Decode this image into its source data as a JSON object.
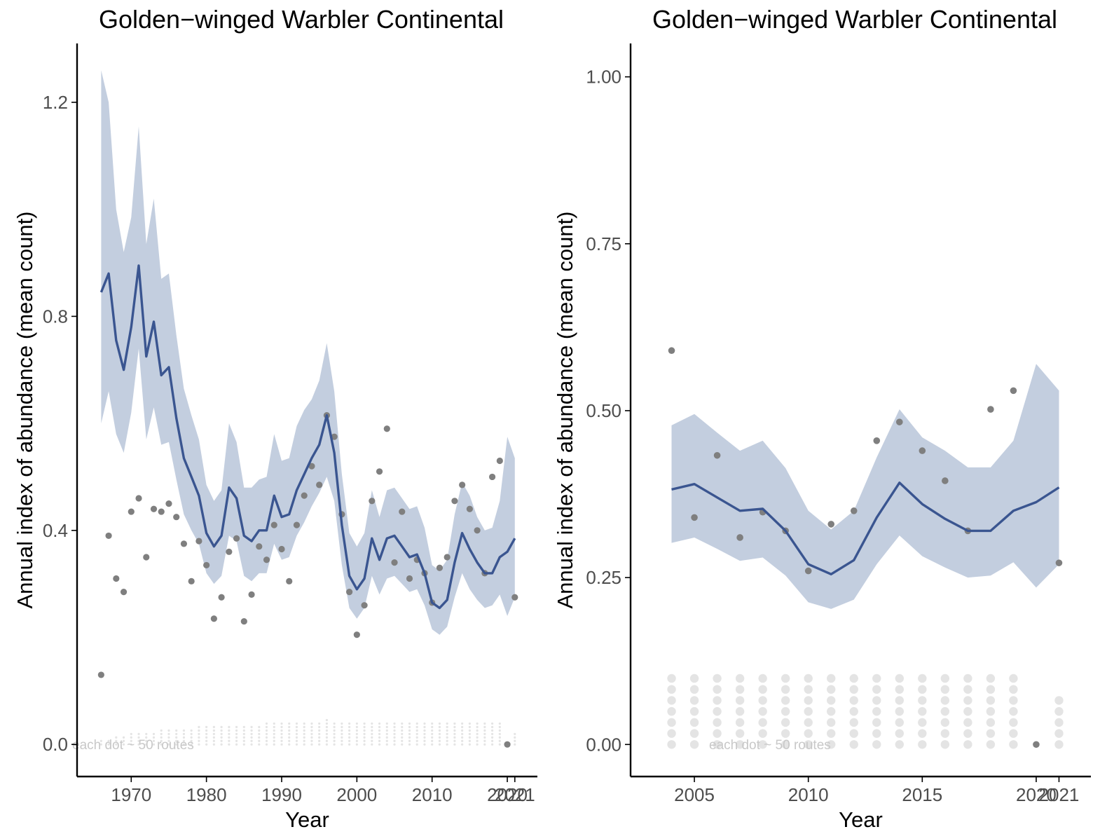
{
  "colors": {
    "line": "#3a5590",
    "ribbon": "#c3cedf",
    "points": "#7f7f7f",
    "route_dots": "#e4e4e4",
    "axis": "#000000",
    "tick_text": "#4d4d4d"
  },
  "chart_data": [
    {
      "type": "line",
      "title": "Golden−winged Warbler Continental",
      "xlabel": "Year",
      "ylabel": "Annual index of abundance (mean count)",
      "note": "each dot ~ 50 routes",
      "xlim": [
        1962.8,
        2024.0
      ],
      "ylim": [
        -0.06,
        1.31
      ],
      "x_ticks": [
        1970,
        1980,
        1990,
        2000,
        2010,
        2020,
        2021
      ],
      "x_tick_labels": [
        "1970",
        "1980",
        "1990",
        "2000",
        "2010",
        "2020",
        "2021"
      ],
      "y_ticks": [
        0.0,
        0.4,
        0.8,
        1.2
      ],
      "y_tick_labels": [
        "0.0",
        "0.4",
        "0.8",
        "1.2"
      ],
      "grid": false,
      "series": [
        {
          "x": [
            1966,
            1967,
            1968,
            1969,
            1970,
            1971,
            1972,
            1973,
            1974,
            1975,
            1976,
            1977,
            1978,
            1979,
            1980,
            1981,
            1982,
            1983,
            1984,
            1985,
            1986,
            1987,
            1988,
            1989,
            1990,
            1991,
            1992,
            1993,
            1994,
            1995,
            1996,
            1997,
            1998,
            1999,
            2000,
            2001,
            2002,
            2003,
            2004,
            2005,
            2006,
            2007,
            2008,
            2009,
            2010,
            2011,
            2012,
            2013,
            2014,
            2015,
            2016,
            2017,
            2018,
            2019,
            2020,
            2021
          ],
          "y": [
            0.845,
            0.88,
            0.755,
            0.7,
            0.78,
            0.895,
            0.725,
            0.79,
            0.69,
            0.705,
            0.61,
            0.535,
            0.5,
            0.465,
            0.395,
            0.37,
            0.39,
            0.48,
            0.46,
            0.39,
            0.38,
            0.4,
            0.4,
            0.465,
            0.425,
            0.43,
            0.475,
            0.505,
            0.535,
            0.56,
            0.615,
            0.545,
            0.41,
            0.315,
            0.29,
            0.31,
            0.385,
            0.345,
            0.385,
            0.39,
            0.37,
            0.35,
            0.355,
            0.32,
            0.265,
            0.255,
            0.27,
            0.34,
            0.395,
            0.365,
            0.34,
            0.32,
            0.32,
            0.35,
            0.36,
            0.385
          ],
          "lower": [
            0.6,
            0.66,
            0.58,
            0.545,
            0.62,
            0.74,
            0.57,
            0.63,
            0.56,
            0.565,
            0.495,
            0.43,
            0.4,
            0.375,
            0.32,
            0.3,
            0.315,
            0.39,
            0.38,
            0.315,
            0.305,
            0.32,
            0.32,
            0.375,
            0.345,
            0.35,
            0.39,
            0.415,
            0.445,
            0.47,
            0.5,
            0.455,
            0.335,
            0.255,
            0.235,
            0.255,
            0.315,
            0.28,
            0.31,
            0.315,
            0.3,
            0.285,
            0.29,
            0.26,
            0.215,
            0.205,
            0.22,
            0.275,
            0.32,
            0.29,
            0.27,
            0.255,
            0.26,
            0.28,
            0.24,
            0.275
          ],
          "upper": [
            1.26,
            1.2,
            1.0,
            0.92,
            0.985,
            1.155,
            0.935,
            1.02,
            0.87,
            0.88,
            0.765,
            0.665,
            0.615,
            0.57,
            0.485,
            0.455,
            0.475,
            0.6,
            0.565,
            0.48,
            0.48,
            0.495,
            0.5,
            0.58,
            0.53,
            0.535,
            0.595,
            0.625,
            0.645,
            0.68,
            0.75,
            0.66,
            0.505,
            0.395,
            0.37,
            0.395,
            0.475,
            0.425,
            0.475,
            0.48,
            0.46,
            0.44,
            0.445,
            0.405,
            0.335,
            0.325,
            0.345,
            0.43,
            0.49,
            0.465,
            0.425,
            0.4,
            0.405,
            0.455,
            0.575,
            0.535
          ]
        }
      ],
      "points": [
        {
          "x": 1966,
          "y": 0.13
        },
        {
          "x": 1967,
          "y": 0.39
        },
        {
          "x": 1968,
          "y": 0.31
        },
        {
          "x": 1969,
          "y": 0.285
        },
        {
          "x": 1970,
          "y": 0.435
        },
        {
          "x": 1971,
          "y": 0.46
        },
        {
          "x": 1972,
          "y": 0.35
        },
        {
          "x": 1973,
          "y": 0.44
        },
        {
          "x": 1974,
          "y": 0.435
        },
        {
          "x": 1975,
          "y": 0.45
        },
        {
          "x": 1976,
          "y": 0.425
        },
        {
          "x": 1977,
          "y": 0.375
        },
        {
          "x": 1978,
          "y": 0.305
        },
        {
          "x": 1979,
          "y": 0.38
        },
        {
          "x": 1980,
          "y": 0.335
        },
        {
          "x": 1981,
          "y": 0.235
        },
        {
          "x": 1982,
          "y": 0.275
        },
        {
          "x": 1983,
          "y": 0.36
        },
        {
          "x": 1984,
          "y": 0.385
        },
        {
          "x": 1985,
          "y": 0.23
        },
        {
          "x": 1986,
          "y": 0.28
        },
        {
          "x": 1987,
          "y": 0.37
        },
        {
          "x": 1988,
          "y": 0.345
        },
        {
          "x": 1989,
          "y": 0.41
        },
        {
          "x": 1990,
          "y": 0.365
        },
        {
          "x": 1991,
          "y": 0.305
        },
        {
          "x": 1992,
          "y": 0.41
        },
        {
          "x": 1993,
          "y": 0.465
        },
        {
          "x": 1994,
          "y": 0.52
        },
        {
          "x": 1995,
          "y": 0.485
        },
        {
          "x": 1996,
          "y": 0.615
        },
        {
          "x": 1997,
          "y": 0.575
        },
        {
          "x": 1998,
          "y": 0.43
        },
        {
          "x": 1999,
          "y": 0.285
        },
        {
          "x": 2000,
          "y": 0.205
        },
        {
          "x": 2001,
          "y": 0.26
        },
        {
          "x": 2002,
          "y": 0.455
        },
        {
          "x": 2003,
          "y": 0.51
        },
        {
          "x": 2004,
          "y": 0.59
        },
        {
          "x": 2005,
          "y": 0.34
        },
        {
          "x": 2006,
          "y": 0.435
        },
        {
          "x": 2007,
          "y": 0.31
        },
        {
          "x": 2008,
          "y": 0.345
        },
        {
          "x": 2009,
          "y": 0.32
        },
        {
          "x": 2010,
          "y": 0.265
        },
        {
          "x": 2011,
          "y": 0.33
        },
        {
          "x": 2012,
          "y": 0.35
        },
        {
          "x": 2013,
          "y": 0.455
        },
        {
          "x": 2014,
          "y": 0.485
        },
        {
          "x": 2015,
          "y": 0.44
        },
        {
          "x": 2016,
          "y": 0.4
        },
        {
          "x": 2017,
          "y": 0.32
        },
        {
          "x": 2018,
          "y": 0.5
        },
        {
          "x": 2019,
          "y": 0.53
        },
        {
          "x": 2020,
          "y": 0.0
        },
        {
          "x": 2021,
          "y": 0.275
        }
      ],
      "route_dots": {
        "years": [
          1966,
          1967,
          1968,
          1969,
          1970,
          1971,
          1972,
          1973,
          1974,
          1975,
          1976,
          1977,
          1978,
          1979,
          1980,
          1981,
          1982,
          1983,
          1984,
          1985,
          1986,
          1987,
          1988,
          1989,
          1990,
          1991,
          1992,
          1993,
          1994,
          1995,
          1996,
          1997,
          1998,
          1999,
          2000,
          2001,
          2002,
          2003,
          2004,
          2005,
          2006,
          2007,
          2008,
          2009,
          2010,
          2011,
          2012,
          2013,
          2014,
          2015,
          2016,
          2017,
          2018,
          2019,
          2020,
          2021
        ],
        "counts": [
          2,
          2,
          3,
          3,
          4,
          4,
          4,
          4,
          5,
          5,
          5,
          5,
          5,
          6,
          6,
          6,
          6,
          6,
          6,
          6,
          6,
          6,
          7,
          7,
          7,
          7,
          7,
          7,
          7,
          7,
          8,
          7,
          7,
          7,
          7,
          7,
          7,
          7,
          7,
          7,
          7,
          7,
          7,
          7,
          7,
          7,
          7,
          7,
          7,
          7,
          7,
          7,
          7,
          7,
          0,
          4
        ]
      }
    },
    {
      "type": "line",
      "title": "Golden−winged Warbler Continental",
      "xlabel": "Year",
      "ylabel": "Annual index of abundance (mean count)",
      "note": "each dot ~ 50 routes",
      "xlim": [
        2002.2,
        2022.4
      ],
      "ylim": [
        -0.048,
        1.05
      ],
      "x_ticks": [
        2005,
        2010,
        2015,
        2020,
        2021
      ],
      "x_tick_labels": [
        "2005",
        "2010",
        "2015",
        "2020",
        "2021"
      ],
      "y_ticks": [
        0.0,
        0.25,
        0.5,
        0.75,
        1.0
      ],
      "y_tick_labels": [
        "0.00",
        "0.25",
        "0.50",
        "0.75",
        "1.00"
      ],
      "grid": false,
      "series": [
        {
          "x": [
            2004,
            2005,
            2006,
            2007,
            2008,
            2009,
            2010,
            2011,
            2012,
            2013,
            2014,
            2015,
            2016,
            2017,
            2018,
            2019,
            2020,
            2021
          ],
          "y": [
            0.382,
            0.39,
            0.37,
            0.35,
            0.353,
            0.32,
            0.27,
            0.255,
            0.276,
            0.34,
            0.392,
            0.36,
            0.338,
            0.32,
            0.32,
            0.35,
            0.363,
            0.385
          ],
          "lower": [
            0.302,
            0.31,
            0.293,
            0.275,
            0.28,
            0.253,
            0.213,
            0.203,
            0.217,
            0.27,
            0.313,
            0.282,
            0.265,
            0.25,
            0.253,
            0.273,
            0.235,
            0.27
          ],
          "upper": [
            0.478,
            0.495,
            0.467,
            0.44,
            0.455,
            0.414,
            0.35,
            0.322,
            0.35,
            0.43,
            0.502,
            0.46,
            0.44,
            0.415,
            0.415,
            0.455,
            0.57,
            0.53
          ]
        }
      ],
      "points": [
        {
          "x": 2004,
          "y": 0.59
        },
        {
          "x": 2005,
          "y": 0.34
        },
        {
          "x": 2006,
          "y": 0.433
        },
        {
          "x": 2007,
          "y": 0.31
        },
        {
          "x": 2008,
          "y": 0.348
        },
        {
          "x": 2009,
          "y": 0.32
        },
        {
          "x": 2010,
          "y": 0.26
        },
        {
          "x": 2011,
          "y": 0.33
        },
        {
          "x": 2012,
          "y": 0.35
        },
        {
          "x": 2013,
          "y": 0.455
        },
        {
          "x": 2014,
          "y": 0.483
        },
        {
          "x": 2015,
          "y": 0.44
        },
        {
          "x": 2016,
          "y": 0.395
        },
        {
          "x": 2017,
          "y": 0.32
        },
        {
          "x": 2018,
          "y": 0.502
        },
        {
          "x": 2019,
          "y": 0.53
        },
        {
          "x": 2020,
          "y": 0.0
        },
        {
          "x": 2021,
          "y": 0.272
        }
      ],
      "route_dots": {
        "years": [
          2004,
          2005,
          2006,
          2007,
          2008,
          2009,
          2010,
          2011,
          2012,
          2013,
          2014,
          2015,
          2016,
          2017,
          2018,
          2019,
          2020,
          2021
        ],
        "counts": [
          7,
          7,
          7,
          7,
          7,
          7,
          7,
          7,
          7,
          7,
          7,
          7,
          7,
          7,
          7,
          7,
          0,
          5
        ]
      }
    }
  ]
}
